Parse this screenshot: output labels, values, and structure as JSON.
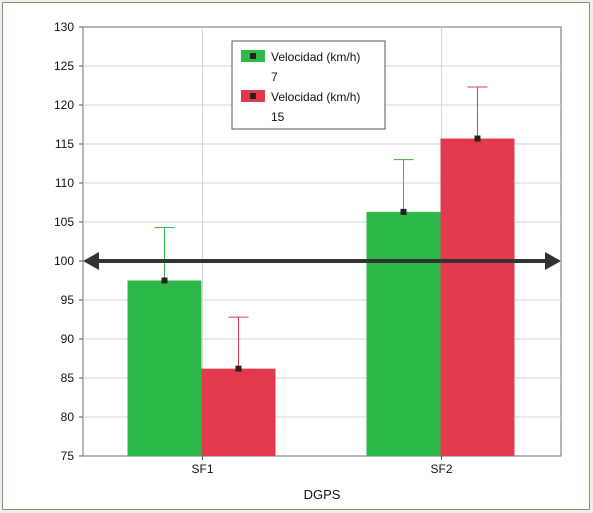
{
  "chart_data": {
    "type": "bar",
    "title": "",
    "xlabel": "DGPS",
    "ylabel": "",
    "categories": [
      "SF1",
      "SF2"
    ],
    "ylim": [
      75,
      130
    ],
    "yticks": [
      75,
      80,
      85,
      90,
      95,
      100,
      105,
      110,
      115,
      120,
      125,
      130
    ],
    "grid": true,
    "legend_position": "top-center",
    "series": [
      {
        "name_line1": "Velocidad (km/h)",
        "name_line2": "7",
        "color": "#2db84a",
        "values": [
          97.5,
          106.3
        ],
        "error_upper": [
          104.3,
          113.0
        ]
      },
      {
        "name_line1": "Velocidad (km/h)",
        "name_line2": "15",
        "color": "#e23a4c",
        "values": [
          86.2,
          115.7
        ],
        "error_upper": [
          92.8,
          122.3
        ]
      }
    ],
    "reference_line": {
      "value": 100,
      "style": "double-arrow",
      "color": "#333333"
    }
  }
}
